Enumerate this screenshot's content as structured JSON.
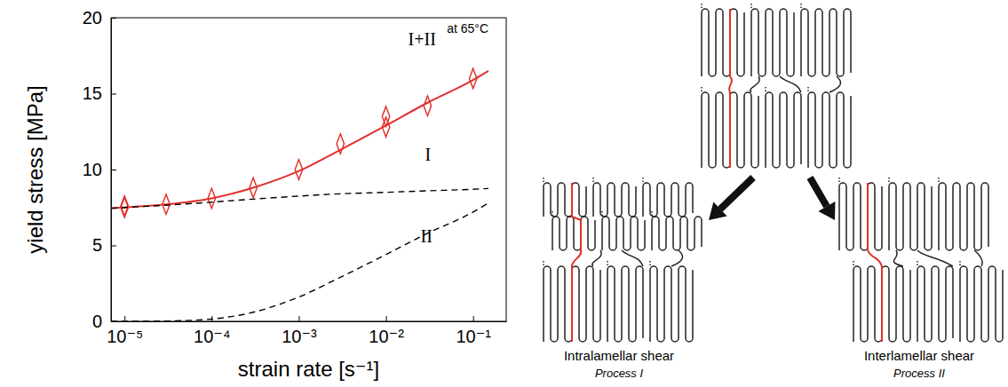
{
  "chart_data": {
    "type": "line",
    "xlabel": "strain rate [s⁻¹]",
    "ylabel": "yield stress [MPa]",
    "log": "x",
    "grid": false,
    "xlim": [
      7e-06,
      0.24
    ],
    "ylim": [
      0,
      20
    ],
    "xticks": [
      {
        "value": 1e-05,
        "label": "10⁻⁵"
      },
      {
        "value": 0.0001,
        "label": "10⁻⁴"
      },
      {
        "value": 0.001,
        "label": "10⁻³"
      },
      {
        "value": 0.01,
        "label": "10⁻²"
      },
      {
        "value": 0.1,
        "label": "10⁻¹"
      }
    ],
    "yticks": [
      0,
      5,
      10,
      15,
      20
    ],
    "series": [
      {
        "type": "scatter",
        "marker": "diamond",
        "color": "#e2302b",
        "x": [
          1e-05,
          1e-05,
          3e-05,
          0.0001,
          0.0003,
          0.001,
          0.003,
          0.01,
          0.01,
          0.03,
          0.1
        ],
        "values": [
          7.6,
          7.5,
          7.7,
          8.1,
          8.8,
          10.0,
          11.7,
          13.5,
          12.8,
          14.2,
          16.0
        ]
      },
      {
        "type": "line",
        "line_style": "solid",
        "color": "#e2302b",
        "x": [
          7e-06,
          1e-05,
          3e-05,
          0.0001,
          0.0003,
          0.001,
          0.003,
          0.01,
          0.03,
          0.1,
          0.15
        ],
        "values": [
          7.45,
          7.5,
          7.7,
          8.1,
          8.8,
          9.9,
          11.3,
          12.9,
          14.4,
          15.9,
          16.5
        ]
      },
      {
        "type": "line",
        "line_style": "dashed",
        "color": "#000000",
        "x": [
          7e-06,
          1e-05,
          3e-05,
          0.0001,
          0.0003,
          0.001,
          0.003,
          0.01,
          0.03,
          0.1,
          0.15
        ],
        "values": [
          7.45,
          7.5,
          7.65,
          7.85,
          8.05,
          8.25,
          8.4,
          8.5,
          8.6,
          8.7,
          8.75
        ]
      },
      {
        "type": "line",
        "line_style": "dashed",
        "color": "#000000",
        "x": [
          7e-06,
          1e-05,
          3e-05,
          0.0001,
          0.0003,
          0.001,
          0.003,
          0.01,
          0.03,
          0.1,
          0.15
        ],
        "values": [
          0,
          0,
          0.02,
          0.15,
          0.6,
          1.6,
          2.9,
          4.4,
          5.8,
          7.2,
          7.8
        ]
      }
    ],
    "annotations": [
      {
        "text": "at 65°C",
        "x": 0.05,
        "y": 19.0
      },
      {
        "text": "I+II",
        "x": 0.018,
        "y": 18.2
      },
      {
        "text": "I",
        "x": 0.028,
        "y": 10.6
      },
      {
        "text": "II",
        "x": 0.025,
        "y": 5.2
      }
    ]
  },
  "diagram": {
    "panels": [
      {
        "title": "Intralamellar shear",
        "subtitle": "Process I"
      },
      {
        "title": "Interlamellar shear",
        "subtitle": "Process II"
      }
    ]
  }
}
